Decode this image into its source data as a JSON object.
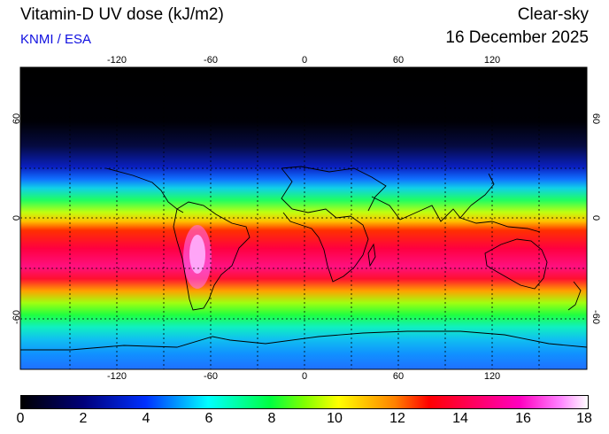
{
  "header": {
    "title": "Vitamin-D UV dose (kJ/m2)",
    "credit": "KNMI / ESA",
    "sky": "Clear-sky",
    "date": "16 December 2025"
  },
  "map": {
    "projection": "equirectangular",
    "lon_range": [
      -180,
      180
    ],
    "lat_range": [
      -90,
      90
    ],
    "lon_ticks": [
      "-120",
      "-60",
      "0",
      "60",
      "120"
    ],
    "lat_ticks": [
      "60",
      "0",
      "-60"
    ]
  },
  "colorbar": {
    "min": 0,
    "max": 18,
    "labels": [
      "0",
      "2",
      "4",
      "6",
      "8",
      "10",
      "12",
      "14",
      "16",
      "18"
    ]
  },
  "colors": {
    "credit": "#1010e0",
    "gridline": "#000000",
    "coastline": "#000000"
  }
}
